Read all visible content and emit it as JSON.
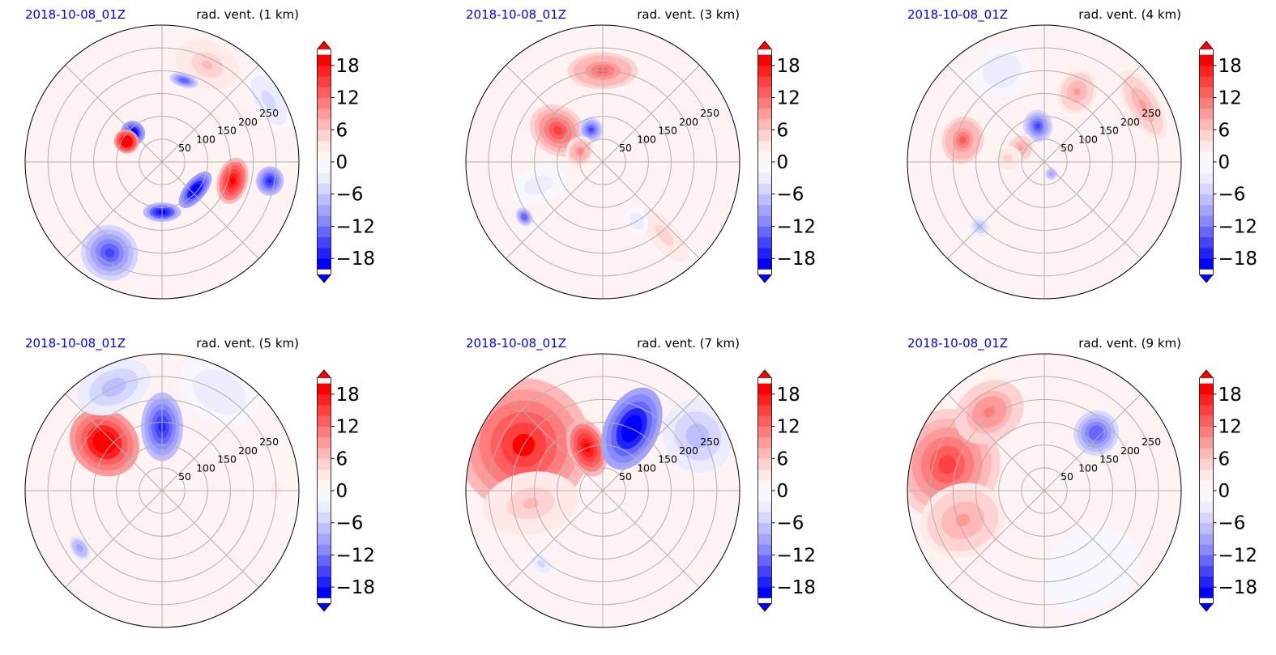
{
  "colors": {
    "date_label": "#0000ff",
    "grid": "#b0b0b0",
    "cmap": [
      "#0000ff",
      "#2222ff",
      "#4444ff",
      "#6666ff",
      "#8888ff",
      "#a4a4ff",
      "#bebeff",
      "#d6d6ff",
      "#ececff",
      "#f7f7ff",
      "#fff5f5",
      "#ffe8e8",
      "#ffd2d2",
      "#ffb8b8",
      "#ff9a9a",
      "#ff7c7c",
      "#ff5e5e",
      "#ff4040",
      "#ff2020",
      "#ff0000"
    ]
  },
  "chart_data": [
    {
      "type": "polar-contour",
      "date_label": "2018-10-08_01Z",
      "title": "rad. vent. (1 km)",
      "r_ticks": [
        50,
        100,
        150,
        200,
        250
      ],
      "r_max": 300,
      "colorbar": {
        "ticks": [
          -18,
          -12,
          -6,
          0,
          6,
          12,
          18
        ],
        "tick_labels": [
          "−18",
          "−12",
          "−6",
          "0",
          "6",
          "12",
          "18"
        ],
        "vmin": -21,
        "vmax": 21,
        "extend": "both"
      },
      "features": [
        {
          "theta": 135,
          "r": 90,
          "value": -22,
          "sr": 22,
          "st": 12
        },
        {
          "theta": 150,
          "r": 90,
          "value": 24,
          "sr": 22,
          "st": 12
        },
        {
          "theta": 320,
          "r": 95,
          "value": -22,
          "sr": 18,
          "st": 25
        },
        {
          "theta": 270,
          "r": 110,
          "value": -20,
          "sr": 16,
          "st": 18
        },
        {
          "theta": 240,
          "r": 230,
          "value": -16,
          "sr": 55,
          "st": 14
        },
        {
          "theta": 345,
          "r": 160,
          "value": 20,
          "sr": 28,
          "st": 16
        },
        {
          "theta": 350,
          "r": 240,
          "value": -18,
          "sr": 25,
          "st": 6
        },
        {
          "theta": 65,
          "r": 235,
          "value": 6,
          "sr": 45,
          "st": 16
        },
        {
          "theta": 75,
          "r": 185,
          "value": -14,
          "sr": 10,
          "st": 8
        },
        {
          "theta": 30,
          "r": 270,
          "value": -5,
          "sr": 30,
          "st": 14
        }
      ]
    },
    {
      "type": "polar-contour",
      "date_label": "2018-10-08_01Z",
      "title": "rad. vent. (3 km)",
      "r_ticks": [
        50,
        100,
        150,
        200,
        250
      ],
      "r_max": 300,
      "colorbar": {
        "ticks": [
          -18,
          -12,
          -6,
          0,
          6,
          12,
          18
        ],
        "tick_labels": [
          "−18",
          "−12",
          "−6",
          "0",
          "6",
          "12",
          "18"
        ],
        "vmin": -21,
        "vmax": 21,
        "extend": "both"
      },
      "features": [
        {
          "theta": 145,
          "r": 120,
          "value": 14,
          "sr": 60,
          "st": 22
        },
        {
          "theta": 110,
          "r": 75,
          "value": -16,
          "sr": 22,
          "st": 15
        },
        {
          "theta": 90,
          "r": 200,
          "value": 12,
          "sr": 35,
          "st": 20
        },
        {
          "theta": 155,
          "r": 55,
          "value": 10,
          "sr": 25,
          "st": 28
        },
        {
          "theta": 310,
          "r": 210,
          "value": 5,
          "sr": 80,
          "st": 8
        },
        {
          "theta": 215,
          "r": 210,
          "value": -14,
          "sr": 12,
          "st": 4
        },
        {
          "theta": 200,
          "r": 150,
          "value": -3,
          "sr": 60,
          "st": 12
        },
        {
          "theta": 300,
          "r": 150,
          "value": -4,
          "sr": 25,
          "st": 6
        }
      ]
    },
    {
      "type": "polar-contour",
      "date_label": "2018-10-08_01Z",
      "title": "rad. vent. (4 km)",
      "r_ticks": [
        50,
        100,
        150,
        200,
        250
      ],
      "r_max": 300,
      "colorbar": {
        "ticks": [
          -18,
          -12,
          -6,
          0,
          6,
          12,
          18
        ],
        "tick_labels": [
          "−18",
          "−12",
          "−6",
          "0",
          "6",
          "12",
          "18"
        ],
        "vmin": -21,
        "vmax": 21,
        "extend": "both"
      },
      "features": [
        {
          "theta": 100,
          "r": 80,
          "value": -16,
          "sr": 30,
          "st": 18
        },
        {
          "theta": 165,
          "r": 185,
          "value": 12,
          "sr": 40,
          "st": 14
        },
        {
          "theta": 150,
          "r": 60,
          "value": 9,
          "sr": 25,
          "st": 25
        },
        {
          "theta": 65,
          "r": 170,
          "value": 8,
          "sr": 45,
          "st": 12
        },
        {
          "theta": 30,
          "r": 250,
          "value": 8,
          "sr": 30,
          "st": 18
        },
        {
          "theta": 115,
          "r": 220,
          "value": -4,
          "sr": 50,
          "st": 15
        },
        {
          "theta": 175,
          "r": 80,
          "value": 5,
          "sr": 25,
          "st": 15
        },
        {
          "theta": 225,
          "r": 200,
          "value": -8,
          "sr": 15,
          "st": 5
        },
        {
          "theta": 300,
          "r": 30,
          "value": -10,
          "sr": 10,
          "st": 15
        }
      ]
    },
    {
      "type": "polar-contour",
      "date_label": "2018-10-08_01Z",
      "title": "rad. vent. (5 km)",
      "r_ticks": [
        50,
        100,
        150,
        200,
        250
      ],
      "r_max": 300,
      "colorbar": {
        "ticks": [
          -18,
          -12,
          -6,
          0,
          6,
          12,
          18
        ],
        "tick_labels": [
          "−18",
          "−12",
          "−6",
          "0",
          "6",
          "12",
          "18"
        ],
        "vmin": -21,
        "vmax": 21,
        "extend": "both"
      },
      "features": [
        {
          "theta": 140,
          "r": 165,
          "value": 22,
          "sr": 75,
          "st": 22
        },
        {
          "theta": 90,
          "r": 140,
          "value": -18,
          "sr": 70,
          "st": 16
        },
        {
          "theta": 115,
          "r": 250,
          "value": -8,
          "sr": 50,
          "st": 18
        },
        {
          "theta": 60,
          "r": 250,
          "value": -4,
          "sr": 60,
          "st": 20
        },
        {
          "theta": 215,
          "r": 220,
          "value": -10,
          "sr": 15,
          "st": 6
        },
        {
          "theta": 0,
          "r": 250,
          "value": 2,
          "sr": 60,
          "st": 25
        }
      ]
    },
    {
      "type": "polar-contour",
      "date_label": "2018-10-08_01Z",
      "title": "rad. vent. (7 km)",
      "r_ticks": [
        50,
        100,
        150,
        200,
        250
      ],
      "r_max": 300,
      "colorbar": {
        "ticks": [
          -18,
          -12,
          -6,
          0,
          6,
          12,
          18
        ],
        "tick_labels": [
          "−18",
          "−12",
          "−6",
          "0",
          "6",
          "12",
          "18"
        ],
        "vmin": -21,
        "vmax": 21,
        "extend": "both"
      },
      "features": [
        {
          "theta": 150,
          "r": 200,
          "value": 18,
          "sr": 140,
          "st": 40
        },
        {
          "theta": 110,
          "r": 100,
          "value": 20,
          "sr": 60,
          "st": 20
        },
        {
          "theta": 190,
          "r": 160,
          "value": 6,
          "sr": 100,
          "st": 22
        },
        {
          "theta": 65,
          "r": 150,
          "value": -22,
          "sr": 90,
          "st": 20
        },
        {
          "theta": 30,
          "r": 240,
          "value": -7,
          "sr": 70,
          "st": 18
        },
        {
          "theta": 230,
          "r": 210,
          "value": -5,
          "sr": 15,
          "st": 6
        }
      ]
    },
    {
      "type": "polar-contour",
      "date_label": "2018-10-08_01Z",
      "title": "rad. vent. (9 km)",
      "r_ticks": [
        50,
        100,
        150,
        200,
        250
      ],
      "r_max": 300,
      "colorbar": {
        "ticks": [
          -18,
          -12,
          -6,
          0,
          6,
          12,
          18
        ],
        "tick_labels": [
          "−18",
          "−12",
          "−6",
          "0",
          "6",
          "12",
          "18"
        ],
        "vmin": -21,
        "vmax": 21,
        "extend": "both"
      },
      "features": [
        {
          "theta": 165,
          "r": 220,
          "value": 15,
          "sr": 110,
          "st": 30
        },
        {
          "theta": 200,
          "r": 190,
          "value": 9,
          "sr": 90,
          "st": 22
        },
        {
          "theta": 125,
          "r": 210,
          "value": 11,
          "sr": 60,
          "st": 20
        },
        {
          "theta": 48,
          "r": 170,
          "value": -14,
          "sr": 45,
          "st": 14
        },
        {
          "theta": 300,
          "r": 200,
          "value": -2,
          "sr": 80,
          "st": 30
        }
      ]
    }
  ]
}
